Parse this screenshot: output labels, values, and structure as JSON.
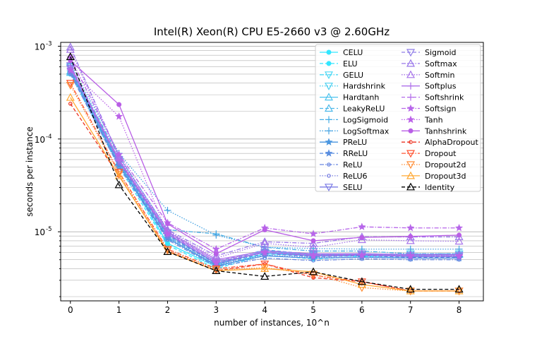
{
  "chart_data": {
    "type": "line",
    "title": "Intel(R) Xeon(R) CPU E5-2660 v3 @ 2.60GHz",
    "xlabel": "number of instances, 10^n",
    "ylabel": "seconds per instance",
    "yscale": "log",
    "ylim": [
      1.8e-06,
      0.0011
    ],
    "xlim": [
      -0.2,
      8.5
    ],
    "grid": "horizontal (major and minor)",
    "legend_placement": "top-right, two columns",
    "x": [
      0,
      1,
      2,
      3,
      4,
      5,
      6,
      7,
      8
    ],
    "x_tick_labels": [
      "0",
      "1",
      "2",
      "3",
      "4",
      "5",
      "6",
      "7",
      "8"
    ],
    "y_tick_labels": [
      {
        "base": "10",
        "exp": "-3",
        "value": 0.001
      },
      {
        "base": "10",
        "exp": "-4",
        "value": 0.0001
      },
      {
        "base": "10",
        "exp": "-5",
        "value": 1e-05
      }
    ],
    "series": [
      {
        "name": "CELU",
        "color": "#33e6ff",
        "dash": "solid",
        "marker": "circle",
        "values": [
          0.00055,
          5.5e-05,
          7.5e-06,
          4.2e-06,
          5.8e-06,
          5.5e-06,
          5.5e-06,
          5.5e-06,
          5.7e-06
        ]
      },
      {
        "name": "ELU",
        "color": "#33e6ff",
        "dash": "dashed",
        "marker": "circle",
        "values": [
          0.0005,
          5e-05,
          7.2e-06,
          4e-06,
          5.6e-06,
          5.1e-06,
          5.4e-06,
          5.2e-06,
          5.2e-06
        ]
      },
      {
        "name": "GELU",
        "color": "#4dd9f5",
        "dash": "dashdot",
        "marker": "triangle-down",
        "values": [
          0.0006,
          5.8e-05,
          9.5e-06,
          4.5e-06,
          6e-06,
          5.6e-06,
          5.8e-06,
          5.6e-06,
          5.6e-06
        ]
      },
      {
        "name": "Hardshrink",
        "color": "#4dd0f0",
        "dash": "dotted",
        "marker": "triangle-down",
        "values": [
          0.00058,
          6e-05,
          9e-06,
          4.7e-06,
          6e-06,
          5.4e-06,
          5.6e-06,
          5.8e-06,
          5.8e-06
        ]
      },
      {
        "name": "Hardtanh",
        "color": "#4cc3ee",
        "dash": "solid",
        "marker": "triangle-up",
        "values": [
          0.00052,
          5.5e-05,
          8.5e-06,
          4.4e-06,
          6.2e-06,
          5.6e-06,
          5.7e-06,
          5.6e-06,
          5.7e-06
        ]
      },
      {
        "name": "LeakyReLU",
        "color": "#4bb8ea",
        "dash": "dashed",
        "marker": "triangle-up",
        "values": [
          0.00054,
          5.6e-05,
          8.8e-06,
          4.6e-06,
          6.4e-06,
          5.7e-06,
          5.8e-06,
          5.7e-06,
          5.8e-06
        ]
      },
      {
        "name": "LogSigmoid",
        "color": "#46aee6",
        "dash": "dashdot",
        "marker": "plus",
        "values": [
          0.0006,
          6.5e-05,
          1.05e-05,
          9.5e-06,
          6.8e-06,
          6.2e-06,
          6.2e-06,
          5.8e-06,
          5.8e-06
        ]
      },
      {
        "name": "LogSoftmax",
        "color": "#45a3e2",
        "dash": "dotted",
        "marker": "plus",
        "values": [
          0.00065,
          7e-05,
          1.7e-05,
          9.2e-06,
          6.8e-06,
          6.6e-06,
          6.5e-06,
          6.5e-06,
          6.5e-06
        ]
      },
      {
        "name": "PReLU",
        "color": "#4a96e0",
        "dash": "solid",
        "marker": "star",
        "values": [
          0.00053,
          5.2e-05,
          8.5e-06,
          4.3e-06,
          5.5e-06,
          5.2e-06,
          5.3e-06,
          5.2e-06,
          5.2e-06
        ]
      },
      {
        "name": "RReLU",
        "color": "#5a8ee0",
        "dash": "dashed",
        "marker": "star",
        "values": [
          0.00056,
          5.6e-05,
          9.2e-06,
          4.5e-06,
          5.8e-06,
          5.4e-06,
          5.5e-06,
          5.3e-06,
          5.3e-06
        ]
      },
      {
        "name": "ReLU",
        "color": "#6a86e0",
        "dash": "dashdot",
        "marker": "circle-small",
        "values": [
          0.0005,
          5e-05,
          8.2e-06,
          4.2e-06,
          5.2e-06,
          4.9e-06,
          5.1e-06,
          5e-06,
          5e-06
        ]
      },
      {
        "name": "ReLU6",
        "color": "#7a80e2",
        "dash": "dotted",
        "marker": "circle-small",
        "values": [
          0.00052,
          5.4e-05,
          8.8e-06,
          4.4e-06,
          5.6e-06,
          5.3e-06,
          5.3e-06,
          5.2e-06,
          5.2e-06
        ]
      },
      {
        "name": "SELU",
        "color": "#7d7de6",
        "dash": "solid",
        "marker": "triangle-down",
        "values": [
          0.00058,
          5.8e-05,
          9.4e-06,
          4.6e-06,
          6e-06,
          5.5e-06,
          5.6e-06,
          5.4e-06,
          5.4e-06
        ]
      },
      {
        "name": "Sigmoid",
        "color": "#8f7ce8",
        "dash": "dashed",
        "marker": "triangle-down",
        "values": [
          0.00062,
          6e-05,
          9.8e-06,
          4.8e-06,
          6.3e-06,
          5.7e-06,
          5.8e-06,
          5.6e-06,
          5.6e-06
        ]
      },
      {
        "name": "Softmax",
        "color": "#9a78ea",
        "dash": "dashdot",
        "marker": "triangle-up",
        "values": [
          0.00098,
          6.5e-05,
          1.05e-05,
          5.5e-06,
          7.8e-06,
          7.5e-06,
          8.8e-06,
          8.8e-06,
          8.8e-06
        ]
      },
      {
        "name": "Softmin",
        "color": "#a774ea",
        "dash": "dotted",
        "marker": "triangle-up",
        "values": [
          0.00092,
          6.3e-05,
          1.02e-05,
          5.2e-06,
          7.5e-06,
          6.8e-06,
          8.2e-06,
          8e-06,
          7.9e-06
        ]
      },
      {
        "name": "Softplus",
        "color": "#ae70ea",
        "dash": "solid",
        "marker": "plus",
        "values": [
          0.0006,
          6e-05,
          1e-05,
          5e-06,
          6.2e-06,
          5.8e-06,
          5.8e-06,
          5.7e-06,
          5.7e-06
        ]
      },
      {
        "name": "Softshrink",
        "color": "#b46cea",
        "dash": "dashed",
        "marker": "plus",
        "values": [
          0.00058,
          5.8e-05,
          9.6e-06,
          4.8e-06,
          6e-06,
          5.6e-06,
          5.7e-06,
          5.5e-06,
          5.5e-06
        ]
      },
      {
        "name": "Softsign",
        "color": "#b766ea",
        "dash": "dashdot",
        "marker": "star",
        "values": [
          0.00075,
          6.8e-05,
          1.25e-05,
          6.5e-06,
          1.1e-05,
          9.5e-06,
          1.13e-05,
          1.1e-05,
          1.1e-05
        ]
      },
      {
        "name": "Tanh",
        "color": "#bb62e8",
        "dash": "dotted",
        "marker": "star",
        "values": [
          0.00055,
          0.000175,
          9.5e-06,
          4.6e-06,
          6e-06,
          5.5e-06,
          5.6e-06,
          5.5e-06,
          5.5e-06
        ]
      },
      {
        "name": "Tanhshrink",
        "color": "#b95ee6",
        "dash": "solid",
        "marker": "circle",
        "values": [
          0.0007,
          0.000235,
          1.22e-05,
          5.8e-06,
          1.05e-05,
          8e-06,
          8.7e-06,
          8.9e-06,
          9.2e-06
        ]
      },
      {
        "name": "AlphaDropout",
        "color": "#ee3322",
        "dash": "dashed",
        "marker": "circle-small",
        "values": [
          0.00024,
          4e-05,
          6.2e-06,
          3.8e-06,
          4.5e-06,
          3.2e-06,
          2.9e-06,
          2.3e-06,
          2.3e-06
        ]
      },
      {
        "name": "Dropout",
        "color": "#ff5533",
        "dash": "dashdot",
        "marker": "triangle-down",
        "values": [
          0.0004,
          4.4e-05,
          6.5e-06,
          4e-06,
          4.5e-06,
          3.4e-06,
          2.9e-06,
          2.3e-06,
          2.3e-06
        ]
      },
      {
        "name": "Dropout2d",
        "color": "#ff8c33",
        "dash": "dotted",
        "marker": "triangle-down",
        "values": [
          0.00038,
          4.2e-05,
          6.3e-06,
          3.9e-06,
          4.1e-06,
          3.5e-06,
          2.5e-06,
          2.3e-06,
          2.3e-06
        ]
      },
      {
        "name": "Dropout3d",
        "color": "#ffa833",
        "dash": "solid",
        "marker": "triangle-up",
        "values": [
          0.00028,
          4e-05,
          6.1e-06,
          3.8e-06,
          4e-06,
          3.7e-06,
          2.7e-06,
          2.3e-06,
          2.3e-06
        ]
      },
      {
        "name": "Identity",
        "color": "#000000",
        "dash": "dashed",
        "marker": "triangle-up",
        "values": [
          0.00077,
          3.2e-05,
          6.1e-06,
          3.8e-06,
          3.3e-06,
          3.7e-06,
          2.9e-06,
          2.4e-06,
          2.4e-06
        ]
      }
    ]
  }
}
